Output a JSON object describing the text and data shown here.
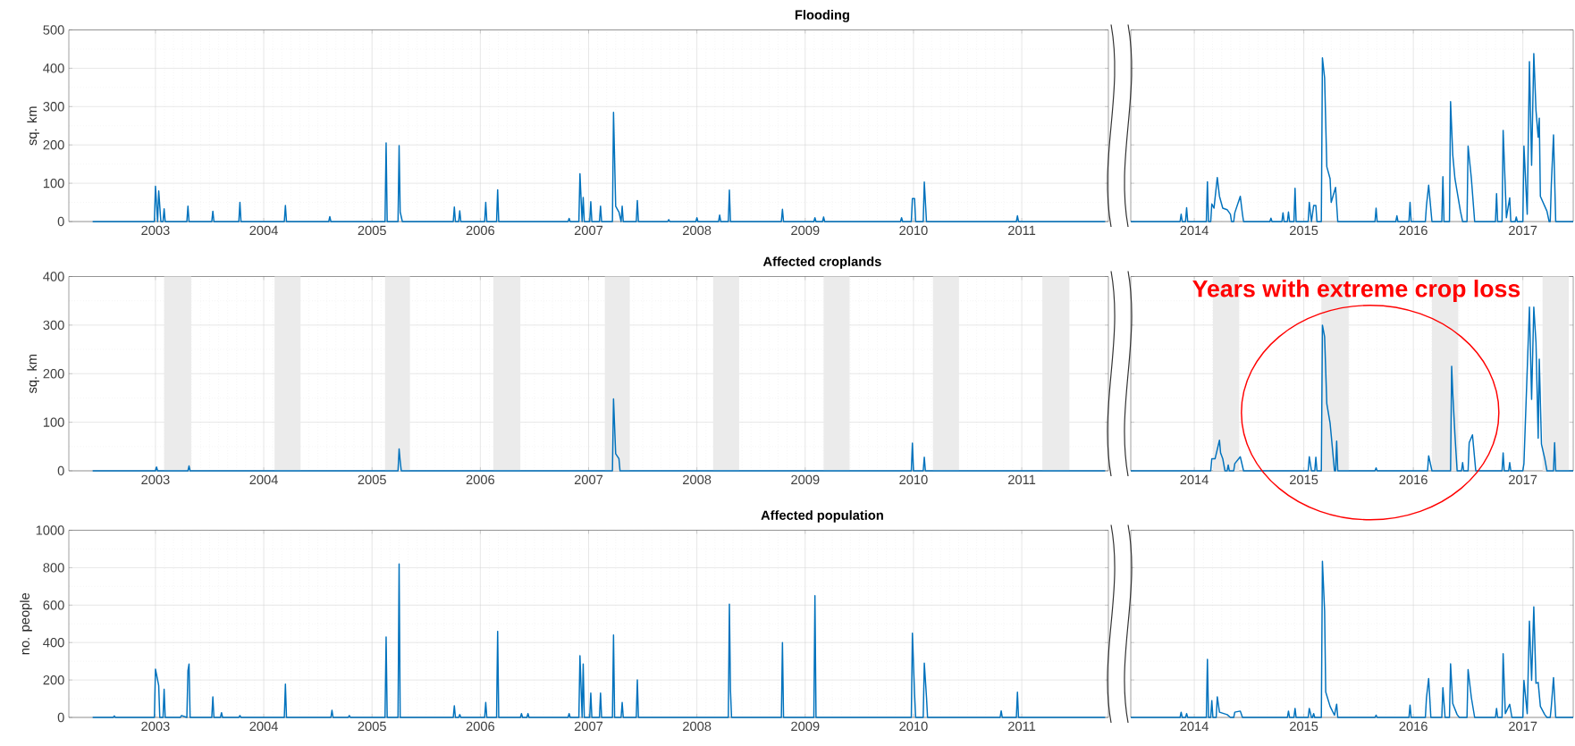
{
  "chart_data": [
    {
      "type": "line",
      "title": "Flooding",
      "ylabel": "sq. km",
      "color": "#0072bd",
      "xlim": [
        2002.2,
        2011.8
      ],
      "ylim": [
        0,
        500
      ],
      "xticks": [
        2003,
        2004,
        2005,
        2006,
        2007,
        2008,
        2009,
        2010,
        2011
      ],
      "yticks": [
        0,
        100,
        200,
        300,
        400,
        500
      ],
      "grid": true,
      "x": [
        2002.42,
        2002.99,
        2003.0,
        2003.02,
        2003.03,
        2003.05,
        2003.07,
        2003.08,
        2003.09,
        2003.29,
        2003.3,
        2003.31,
        2003.52,
        2003.53,
        2003.54,
        2003.77,
        2003.78,
        2003.79,
        2004.19,
        2004.2,
        2004.21,
        2004.6,
        2004.61,
        2004.62,
        2005.12,
        2005.13,
        2005.14,
        2005.24,
        2005.25,
        2005.26,
        2005.28,
        2005.75,
        2005.76,
        2005.77,
        2005.8,
        2005.81,
        2005.82,
        2006.04,
        2006.05,
        2006.06,
        2006.15,
        2006.16,
        2006.17,
        2006.81,
        2006.82,
        2006.83,
        2006.91,
        2006.92,
        2006.94,
        2006.95,
        2006.96,
        2007.01,
        2007.02,
        2007.03,
        2007.1,
        2007.11,
        2007.12,
        2007.22,
        2007.23,
        2007.25,
        2007.28,
        2007.3,
        2007.31,
        2007.32,
        2007.44,
        2007.45,
        2007.46,
        2007.73,
        2007.74,
        2007.75,
        2007.99,
        2008.0,
        2008.01,
        2008.2,
        2008.21,
        2008.22,
        2008.29,
        2008.3,
        2008.31,
        2008.78,
        2008.79,
        2008.8,
        2009.08,
        2009.09,
        2009.1,
        2009.16,
        2009.17,
        2009.18,
        2009.88,
        2009.89,
        2009.9,
        2009.98,
        2009.99,
        2010.01,
        2010.02,
        2010.09,
        2010.1,
        2010.12,
        2010.95,
        2010.96,
        2010.97,
        2011.77
      ],
      "values": [
        0,
        0,
        92,
        0,
        80,
        0,
        0,
        33,
        0,
        0,
        40,
        0,
        0,
        27,
        0,
        0,
        50,
        0,
        0,
        42,
        0,
        0,
        13,
        0,
        0,
        205,
        0,
        0,
        198,
        25,
        0,
        0,
        38,
        0,
        0,
        28,
        0,
        0,
        50,
        0,
        0,
        83,
        0,
        0,
        8,
        0,
        0,
        125,
        0,
        63,
        0,
        0,
        52,
        0,
        0,
        40,
        0,
        0,
        285,
        40,
        25,
        0,
        40,
        0,
        0,
        55,
        0,
        0,
        5,
        0,
        0,
        10,
        0,
        0,
        17,
        0,
        0,
        82,
        0,
        0,
        32,
        0,
        0,
        10,
        0,
        0,
        12,
        0,
        0,
        10,
        0,
        0,
        60,
        60,
        0,
        0,
        103,
        0,
        0,
        15,
        0,
        0
      ]
    },
    {
      "type": "line",
      "color": "#0072bd",
      "xlim": [
        2013.42,
        2017.46
      ],
      "ylim": [
        0,
        500
      ],
      "xticks": [
        2014,
        2015,
        2016,
        2017
      ],
      "yticks": [
        0,
        100,
        200,
        300,
        400,
        500
      ],
      "grid": true,
      "tick_labels": "x",
      "x": [
        2013.42,
        2013.87,
        2013.88,
        2013.89,
        2013.92,
        2013.93,
        2013.94,
        2014.11,
        2014.12,
        2014.13,
        2014.15,
        2014.16,
        2014.18,
        2014.21,
        2014.23,
        2014.26,
        2014.3,
        2014.33,
        2014.34,
        2014.36,
        2014.37,
        2014.42,
        2014.44,
        2014.45,
        2014.69,
        2014.7,
        2014.71,
        2014.8,
        2014.81,
        2014.82,
        2014.85,
        2014.86,
        2014.87,
        2014.91,
        2014.92,
        2014.93,
        2015.04,
        2015.05,
        2015.07,
        2015.09,
        2015.11,
        2015.12,
        2015.16,
        2015.17,
        2015.19,
        2015.21,
        2015.24,
        2015.25,
        2015.29,
        2015.31,
        2015.65,
        2015.66,
        2015.67,
        2015.84,
        2015.85,
        2015.86,
        2015.96,
        2015.97,
        2015.98,
        2016.11,
        2016.12,
        2016.14,
        2016.17,
        2016.26,
        2016.27,
        2016.28,
        2016.33,
        2016.34,
        2016.36,
        2016.38,
        2016.43,
        2016.45,
        2016.49,
        2016.5,
        2016.53,
        2016.56,
        2016.75,
        2016.76,
        2016.77,
        2016.81,
        2016.82,
        2016.85,
        2016.88,
        2016.89,
        2016.93,
        2016.94,
        2016.95,
        2017.0,
        2017.01,
        2017.04,
        2017.06,
        2017.08,
        2017.1,
        2017.12,
        2017.14,
        2017.15,
        2017.16,
        2017.22,
        2017.24,
        2017.25,
        2017.26,
        2017.28,
        2017.3,
        2017.46
      ],
      "values": [
        0,
        0,
        19,
        0,
        0,
        36,
        0,
        0,
        104,
        0,
        0,
        46,
        35,
        115,
        66,
        35,
        31,
        19,
        0,
        0,
        23,
        66,
        19,
        0,
        0,
        9,
        0,
        0,
        23,
        0,
        0,
        25,
        0,
        0,
        87,
        0,
        0,
        50,
        0,
        42,
        42,
        0,
        0,
        427,
        375,
        143,
        112,
        50,
        89,
        0,
        0,
        35,
        0,
        0,
        15,
        0,
        0,
        50,
        0,
        0,
        42,
        95,
        0,
        0,
        117,
        0,
        0,
        313,
        174,
        112,
        27,
        0,
        0,
        197,
        112,
        0,
        0,
        73,
        0,
        0,
        238,
        10,
        62,
        0,
        0,
        12,
        0,
        0,
        197,
        19,
        417,
        147,
        438,
        290,
        220,
        270,
        66,
        27,
        0,
        0,
        97,
        226,
        0,
        0
      ]
    },
    {
      "type": "line",
      "title": "Affected croplands",
      "ylabel": "sq. km",
      "color": "#0072bd",
      "xlim": [
        2002.2,
        2011.8
      ],
      "ylim": [
        0,
        400
      ],
      "xticks": [
        2003,
        2004,
        2005,
        2006,
        2007,
        2008,
        2009,
        2010,
        2011
      ],
      "yticks": [
        0,
        100,
        200,
        300,
        400
      ],
      "grid": true,
      "bands": [
        {
          "axis": "x",
          "from": 2003.08,
          "to": 2003.33,
          "color": "#ebebeb"
        },
        {
          "axis": "x",
          "from": 2004.1,
          "to": 2004.34,
          "color": "#ebebeb"
        },
        {
          "axis": "x",
          "from": 2005.12,
          "to": 2005.35,
          "color": "#ebebeb"
        },
        {
          "axis": "x",
          "from": 2006.12,
          "to": 2006.37,
          "color": "#ebebeb"
        },
        {
          "axis": "x",
          "from": 2007.15,
          "to": 2007.38,
          "color": "#ebebeb"
        },
        {
          "axis": "x",
          "from": 2008.15,
          "to": 2008.39,
          "color": "#ebebeb"
        },
        {
          "axis": "x",
          "from": 2009.17,
          "to": 2009.41,
          "color": "#ebebeb"
        },
        {
          "axis": "x",
          "from": 2010.18,
          "to": 2010.42,
          "color": "#ebebeb"
        },
        {
          "axis": "x",
          "from": 2011.19,
          "to": 2011.44,
          "color": "#ebebeb"
        }
      ],
      "x": [
        2002.42,
        2003.0,
        2003.01,
        2003.02,
        2003.3,
        2003.31,
        2003.32,
        2005.24,
        2005.25,
        2005.26,
        2005.27,
        2007.22,
        2007.23,
        2007.25,
        2007.28,
        2007.29,
        2009.98,
        2009.99,
        2010.0,
        2010.09,
        2010.1,
        2010.11,
        2011.77
      ],
      "values": [
        0,
        0,
        8,
        0,
        0,
        10,
        0,
        0,
        45,
        20,
        0,
        0,
        148,
        35,
        25,
        0,
        0,
        57,
        0,
        0,
        28,
        0,
        0
      ]
    },
    {
      "type": "line",
      "color": "#0072bd",
      "xlim": [
        2013.42,
        2017.46
      ],
      "ylim": [
        0,
        400
      ],
      "xticks": [
        2014,
        2015,
        2016,
        2017
      ],
      "yticks": [
        0,
        100,
        200,
        300,
        400
      ],
      "grid": true,
      "tick_labels": "x",
      "annotations": [
        "Years with extreme crop loss"
      ],
      "bands": [
        {
          "axis": "x",
          "from": 2014.17,
          "to": 2014.41,
          "color": "#ebebeb"
        },
        {
          "axis": "x",
          "from": 2015.16,
          "to": 2015.41,
          "color": "#ebebeb"
        },
        {
          "axis": "x",
          "from": 2016.17,
          "to": 2016.41,
          "color": "#ebebeb"
        },
        {
          "axis": "x",
          "from": 2017.18,
          "to": 2017.42,
          "color": "#ebebeb"
        }
      ],
      "x": [
        2013.42,
        2014.15,
        2014.16,
        2014.19,
        2014.23,
        2014.24,
        2014.26,
        2014.28,
        2014.3,
        2014.31,
        2014.32,
        2014.36,
        2014.37,
        2014.42,
        2014.45,
        2015.04,
        2015.05,
        2015.07,
        2015.1,
        2015.11,
        2015.12,
        2015.16,
        2015.17,
        2015.19,
        2015.21,
        2015.24,
        2015.25,
        2015.28,
        2015.29,
        2015.3,
        2015.31,
        2015.65,
        2015.66,
        2015.67,
        2016.13,
        2016.14,
        2016.17,
        2016.34,
        2016.35,
        2016.36,
        2016.38,
        2016.4,
        2016.44,
        2016.45,
        2016.46,
        2016.5,
        2016.51,
        2016.54,
        2016.57,
        2016.81,
        2016.82,
        2016.83,
        2016.87,
        2016.88,
        2016.89,
        2017.0,
        2017.01,
        2017.06,
        2017.08,
        2017.1,
        2017.12,
        2017.14,
        2017.15,
        2017.17,
        2017.2,
        2017.22,
        2017.28,
        2017.29,
        2017.3,
        2017.46
      ],
      "values": [
        0,
        0,
        25,
        25,
        63,
        37,
        25,
        0,
        0,
        12,
        0,
        0,
        15,
        29,
        0,
        0,
        29,
        0,
        0,
        28,
        0,
        0,
        300,
        276,
        138,
        98,
        74,
        0,
        0,
        61,
        0,
        0,
        6,
        0,
        0,
        31,
        0,
        0,
        215,
        160,
        74,
        0,
        0,
        17,
        0,
        0,
        58,
        74,
        0,
        0,
        37,
        0,
        0,
        17,
        0,
        0,
        15,
        337,
        147,
        337,
        264,
        67,
        230,
        55,
        25,
        0,
        0,
        58,
        0,
        0
      ]
    },
    {
      "type": "line",
      "title": "Affected population",
      "ylabel": "no. people",
      "color": "#0072bd",
      "xlim": [
        2002.2,
        2011.8
      ],
      "ylim": [
        0,
        1000
      ],
      "xticks": [
        2003,
        2004,
        2005,
        2006,
        2007,
        2008,
        2009,
        2010,
        2011
      ],
      "yticks": [
        0,
        200,
        400,
        600,
        800,
        1000
      ],
      "grid": true,
      "x": [
        2002.42,
        2002.61,
        2002.62,
        2002.63,
        2002.99,
        2003.0,
        2003.03,
        2003.04,
        2003.07,
        2003.08,
        2003.09,
        2003.23,
        2003.24,
        2003.29,
        2003.3,
        2003.31,
        2003.32,
        2003.52,
        2003.53,
        2003.54,
        2003.6,
        2003.61,
        2003.62,
        2003.77,
        2003.78,
        2003.79,
        2004.19,
        2004.2,
        2004.21,
        2004.62,
        2004.63,
        2004.64,
        2004.78,
        2004.79,
        2004.8,
        2005.12,
        2005.13,
        2005.14,
        2005.24,
        2005.25,
        2005.26,
        2005.75,
        2005.76,
        2005.77,
        2005.8,
        2005.81,
        2005.82,
        2006.04,
        2006.05,
        2006.06,
        2006.15,
        2006.16,
        2006.17,
        2006.37,
        2006.38,
        2006.39,
        2006.43,
        2006.44,
        2006.45,
        2006.81,
        2006.82,
        2006.83,
        2006.91,
        2006.92,
        2006.94,
        2006.95,
        2006.96,
        2007.01,
        2007.02,
        2007.03,
        2007.1,
        2007.11,
        2007.12,
        2007.22,
        2007.23,
        2007.24,
        2007.3,
        2007.31,
        2007.32,
        2007.44,
        2007.45,
        2007.46,
        2008.29,
        2008.3,
        2008.31,
        2008.32,
        2008.78,
        2008.79,
        2008.8,
        2009.08,
        2009.09,
        2009.1,
        2009.98,
        2009.99,
        2010.01,
        2010.02,
        2010.09,
        2010.1,
        2010.12,
        2010.13,
        2010.8,
        2010.81,
        2010.82,
        2010.95,
        2010.96,
        2010.97,
        2011.77
      ],
      "values": [
        0,
        0,
        8,
        0,
        0,
        258,
        170,
        0,
        0,
        150,
        0,
        0,
        10,
        0,
        250,
        285,
        0,
        0,
        110,
        0,
        0,
        25,
        0,
        0,
        10,
        0,
        0,
        178,
        0,
        0,
        38,
        0,
        0,
        10,
        0,
        0,
        430,
        0,
        0,
        820,
        0,
        0,
        62,
        0,
        0,
        15,
        0,
        0,
        80,
        0,
        0,
        460,
        0,
        0,
        20,
        0,
        0,
        20,
        0,
        0,
        20,
        0,
        0,
        330,
        0,
        285,
        0,
        0,
        130,
        0,
        0,
        130,
        0,
        0,
        440,
        0,
        0,
        80,
        0,
        0,
        200,
        0,
        0,
        605,
        145,
        0,
        0,
        400,
        0,
        0,
        650,
        0,
        0,
        450,
        125,
        0,
        0,
        290,
        110,
        0,
        0,
        35,
        0,
        0,
        135,
        0,
        0
      ]
    },
    {
      "type": "line",
      "color": "#0072bd",
      "xlim": [
        2013.42,
        2017.46
      ],
      "ylim": [
        0,
        1000
      ],
      "xticks": [
        2014,
        2015,
        2016,
        2017
      ],
      "yticks": [
        0,
        200,
        400,
        600,
        800,
        1000
      ],
      "grid": true,
      "tick_labels": "x",
      "x": [
        2013.42,
        2013.87,
        2013.88,
        2013.89,
        2013.92,
        2013.93,
        2013.94,
        2014.11,
        2014.12,
        2014.13,
        2014.15,
        2014.16,
        2014.17,
        2014.2,
        2014.21,
        2014.23,
        2014.3,
        2014.33,
        2014.36,
        2014.37,
        2014.42,
        2014.44,
        2014.85,
        2014.86,
        2014.87,
        2014.91,
        2014.92,
        2014.93,
        2015.04,
        2015.05,
        2015.07,
        2015.08,
        2015.09,
        2015.1,
        2015.16,
        2015.17,
        2015.19,
        2015.2,
        2015.24,
        2015.28,
        2015.3,
        2015.31,
        2015.65,
        2015.66,
        2015.67,
        2015.96,
        2015.97,
        2015.98,
        2016.11,
        2016.12,
        2016.14,
        2016.16,
        2016.26,
        2016.27,
        2016.29,
        2016.33,
        2016.34,
        2016.36,
        2016.4,
        2016.42,
        2016.49,
        2016.5,
        2016.53,
        2016.56,
        2016.75,
        2016.76,
        2016.77,
        2016.81,
        2016.82,
        2016.84,
        2016.88,
        2016.9,
        2017.0,
        2017.01,
        2017.04,
        2017.06,
        2017.08,
        2017.1,
        2017.12,
        2017.14,
        2017.16,
        2017.2,
        2017.22,
        2017.25,
        2017.26,
        2017.28,
        2017.3,
        2017.46
      ],
      "values": [
        0,
        0,
        28,
        0,
        0,
        20,
        0,
        0,
        310,
        0,
        0,
        90,
        0,
        0,
        110,
        28,
        15,
        0,
        0,
        28,
        34,
        0,
        0,
        34,
        0,
        0,
        48,
        0,
        0,
        48,
        0,
        0,
        20,
        0,
        0,
        834,
        568,
        136,
        59,
        12,
        71,
        0,
        0,
        12,
        0,
        0,
        66,
        0,
        0,
        105,
        208,
        0,
        0,
        159,
        0,
        0,
        286,
        74,
        15,
        0,
        0,
        255,
        105,
        0,
        0,
        48,
        0,
        0,
        340,
        20,
        70,
        0,
        0,
        198,
        20,
        514,
        198,
        591,
        182,
        187,
        59,
        15,
        0,
        0,
        59,
        213,
        0,
        0
      ]
    }
  ]
}
